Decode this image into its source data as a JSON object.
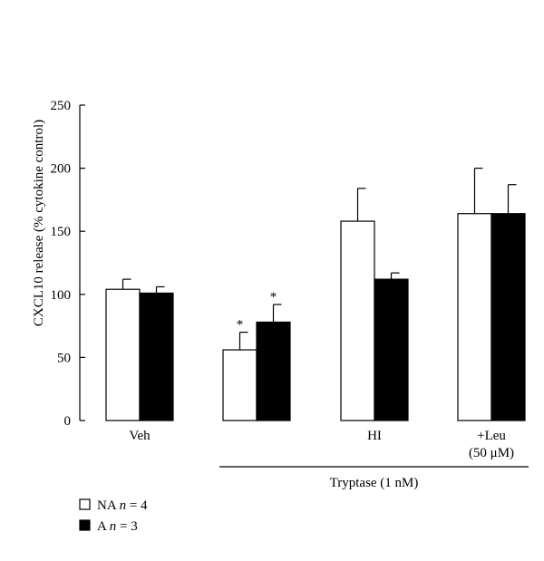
{
  "chart_data": {
    "type": "bar",
    "ylabel": "CXCL10 release (% cytokine control)",
    "ylim": [
      0,
      250
    ],
    "yticks": [
      0,
      50,
      100,
      150,
      200,
      250
    ],
    "grid": false,
    "legend_position": "bottom-left",
    "categories": [
      "Veh",
      "",
      "HI",
      "+Leu"
    ],
    "category_sublabels": [
      "",
      "",
      "",
      "(50 μM)"
    ],
    "group_label": "Tryptase (1 nM)",
    "group_label_spans": [
      1,
      3
    ],
    "series": [
      {
        "name": "NA n = 4",
        "name_prefix": "NA",
        "name_italic": "n",
        "name_suffix": "= 4",
        "fill": "#ffffff",
        "values": [
          104,
          56,
          158,
          164
        ],
        "errors": [
          8,
          14,
          26,
          36
        ],
        "significance": [
          "",
          "*",
          "",
          ""
        ]
      },
      {
        "name": "A n = 3",
        "name_prefix": "A",
        "name_italic": "n",
        "name_suffix": "= 3",
        "fill": "#000000",
        "values": [
          101,
          78,
          112,
          164
        ],
        "errors": [
          5,
          14,
          5,
          23
        ],
        "significance": [
          "",
          "*",
          "",
          ""
        ]
      }
    ]
  }
}
